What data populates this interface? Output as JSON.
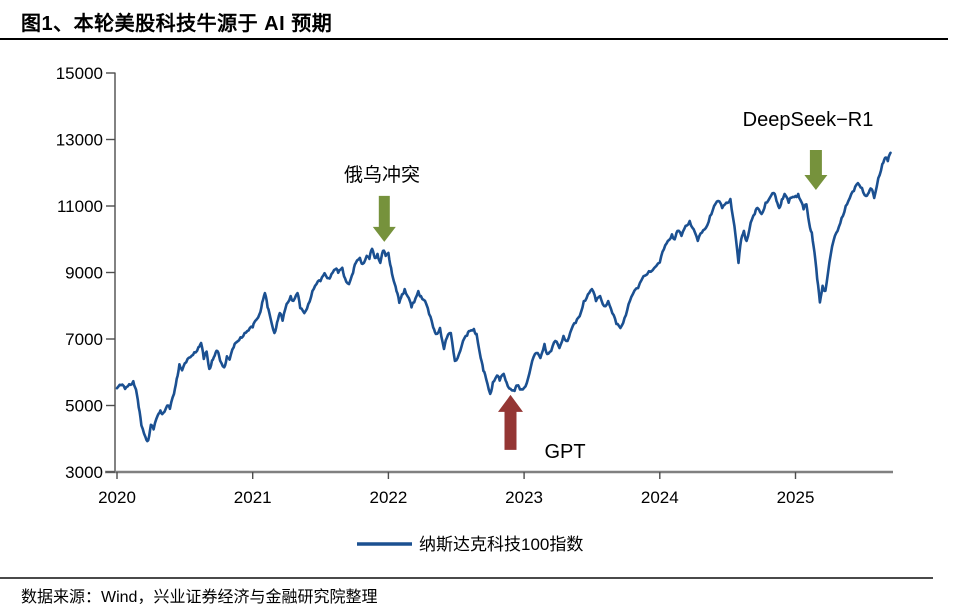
{
  "figure": {
    "title": "图1、本轮美股科技牛源于 AI 预期",
    "source": "数据来源：Wind，兴业证券经济与金融研究院整理"
  },
  "chart_data": {
    "type": "line",
    "title": "图1、本轮美股科技牛源于 AI 预期",
    "xlabel": "",
    "ylabel": "",
    "xlim": [
      2020,
      2025.73
    ],
    "ylim": [
      3000,
      15000
    ],
    "x_ticks": [
      "2020",
      "2021",
      "2022",
      "2023",
      "2024",
      "2025"
    ],
    "y_ticks": [
      15000,
      13000,
      11000,
      9000,
      7000,
      5000,
      3000
    ],
    "grid": false,
    "legend_position": "bottom-center",
    "line_color": "#1B5091",
    "axis_color": "#808080",
    "tick_color": "#4d4d4d",
    "annotations": [
      {
        "label": "俄乌冲突",
        "arrow": "down",
        "color": "#76923C",
        "x": 2021.97,
        "tip_value": 9920
      },
      {
        "label": "GPT",
        "arrow": "up",
        "color": "#943634",
        "x": 2022.9,
        "tip_value": 5320
      },
      {
        "label": "DeepSeek−R1",
        "arrow": "down",
        "color": "#76923C",
        "x": 2025.15,
        "tip_value": 11480
      }
    ],
    "series": [
      {
        "name": "纳斯达克科技100指数",
        "color": "#1B5091",
        "points": [
          [
            2020.0,
            5520
          ],
          [
            2020.03,
            5610
          ],
          [
            2020.06,
            5500
          ],
          [
            2020.09,
            5640
          ],
          [
            2020.12,
            5730
          ],
          [
            2020.14,
            5480
          ],
          [
            2020.16,
            4950
          ],
          [
            2020.18,
            4400
          ],
          [
            2020.21,
            4050
          ],
          [
            2020.23,
            3950
          ],
          [
            2020.25,
            4420
          ],
          [
            2020.27,
            4280
          ],
          [
            2020.3,
            4700
          ],
          [
            2020.32,
            4850
          ],
          [
            2020.34,
            4770
          ],
          [
            2020.37,
            5000
          ],
          [
            2020.39,
            4900
          ],
          [
            2020.42,
            5350
          ],
          [
            2020.44,
            5800
          ],
          [
            2020.46,
            6240
          ],
          [
            2020.48,
            6060
          ],
          [
            2020.51,
            6300
          ],
          [
            2020.54,
            6450
          ],
          [
            2020.57,
            6600
          ],
          [
            2020.6,
            6750
          ],
          [
            2020.62,
            6880
          ],
          [
            2020.64,
            6400
          ],
          [
            2020.66,
            6620
          ],
          [
            2020.68,
            6100
          ],
          [
            2020.7,
            6350
          ],
          [
            2020.72,
            6500
          ],
          [
            2020.74,
            6640
          ],
          [
            2020.76,
            6350
          ],
          [
            2020.79,
            6150
          ],
          [
            2020.81,
            6480
          ],
          [
            2020.83,
            6380
          ],
          [
            2020.86,
            6750
          ],
          [
            2020.88,
            6900
          ],
          [
            2020.91,
            7050
          ],
          [
            2020.94,
            7180
          ],
          [
            2020.97,
            7260
          ],
          [
            2021.0,
            7350
          ],
          [
            2021.02,
            7550
          ],
          [
            2021.05,
            7750
          ],
          [
            2021.07,
            8100
          ],
          [
            2021.09,
            8380
          ],
          [
            2021.11,
            7950
          ],
          [
            2021.13,
            7650
          ],
          [
            2021.16,
            7180
          ],
          [
            2021.18,
            7500
          ],
          [
            2021.2,
            7780
          ],
          [
            2021.22,
            7550
          ],
          [
            2021.25,
            8050
          ],
          [
            2021.28,
            8290
          ],
          [
            2021.3,
            8150
          ],
          [
            2021.33,
            8380
          ],
          [
            2021.35,
            7930
          ],
          [
            2021.38,
            7780
          ],
          [
            2021.41,
            8050
          ],
          [
            2021.44,
            8440
          ],
          [
            2021.47,
            8650
          ],
          [
            2021.5,
            8740
          ],
          [
            2021.53,
            8980
          ],
          [
            2021.56,
            8830
          ],
          [
            2021.58,
            8950
          ],
          [
            2021.61,
            9100
          ],
          [
            2021.63,
            8990
          ],
          [
            2021.66,
            9140
          ],
          [
            2021.68,
            8830
          ],
          [
            2021.71,
            8650
          ],
          [
            2021.74,
            8990
          ],
          [
            2021.76,
            9290
          ],
          [
            2021.79,
            9440
          ],
          [
            2021.81,
            9260
          ],
          [
            2021.84,
            9500
          ],
          [
            2021.86,
            9410
          ],
          [
            2021.88,
            9710
          ],
          [
            2021.9,
            9440
          ],
          [
            2021.92,
            9560
          ],
          [
            2021.94,
            9290
          ],
          [
            2021.96,
            9650
          ],
          [
            2021.98,
            9500
          ],
          [
            2022.0,
            9590
          ],
          [
            2022.02,
            9140
          ],
          [
            2022.04,
            8740
          ],
          [
            2022.06,
            8440
          ],
          [
            2022.08,
            8090
          ],
          [
            2022.1,
            8340
          ],
          [
            2022.12,
            8500
          ],
          [
            2022.15,
            8230
          ],
          [
            2022.17,
            7950
          ],
          [
            2022.19,
            8100
          ],
          [
            2022.22,
            8440
          ],
          [
            2022.24,
            8290
          ],
          [
            2022.27,
            8150
          ],
          [
            2022.3,
            7750
          ],
          [
            2022.33,
            7350
          ],
          [
            2022.35,
            7150
          ],
          [
            2022.38,
            7330
          ],
          [
            2022.41,
            6700
          ],
          [
            2022.43,
            7030
          ],
          [
            2022.46,
            7180
          ],
          [
            2022.49,
            6340
          ],
          [
            2022.52,
            6550
          ],
          [
            2022.55,
            6940
          ],
          [
            2022.58,
            7100
          ],
          [
            2022.6,
            7240
          ],
          [
            2022.63,
            7300
          ],
          [
            2022.65,
            7150
          ],
          [
            2022.68,
            6430
          ],
          [
            2022.7,
            6040
          ],
          [
            2022.72,
            5800
          ],
          [
            2022.75,
            5350
          ],
          [
            2022.77,
            5700
          ],
          [
            2022.8,
            5900
          ],
          [
            2022.82,
            5750
          ],
          [
            2022.85,
            5950
          ],
          [
            2022.87,
            5700
          ],
          [
            2022.9,
            5500
          ],
          [
            2022.93,
            5440
          ],
          [
            2022.95,
            5600
          ],
          [
            2022.97,
            5480
          ],
          [
            2023.0,
            5530
          ],
          [
            2023.03,
            5830
          ],
          [
            2023.06,
            6340
          ],
          [
            2023.09,
            6580
          ],
          [
            2023.12,
            6430
          ],
          [
            2023.15,
            6850
          ],
          [
            2023.17,
            6550
          ],
          [
            2023.2,
            6640
          ],
          [
            2023.23,
            6940
          ],
          [
            2023.26,
            6730
          ],
          [
            2023.29,
            7090
          ],
          [
            2023.32,
            6940
          ],
          [
            2023.35,
            7300
          ],
          [
            2023.38,
            7480
          ],
          [
            2023.41,
            7690
          ],
          [
            2023.44,
            8140
          ],
          [
            2023.47,
            8340
          ],
          [
            2023.5,
            8500
          ],
          [
            2023.53,
            8140
          ],
          [
            2023.56,
            8290
          ],
          [
            2023.59,
            7990
          ],
          [
            2023.62,
            8140
          ],
          [
            2023.65,
            7780
          ],
          [
            2023.68,
            7450
          ],
          [
            2023.71,
            7330
          ],
          [
            2023.74,
            7630
          ],
          [
            2023.77,
            8050
          ],
          [
            2023.8,
            8340
          ],
          [
            2023.84,
            8530
          ],
          [
            2023.88,
            8890
          ],
          [
            2023.92,
            9040
          ],
          [
            2023.96,
            9140
          ],
          [
            2024.0,
            9300
          ],
          [
            2024.03,
            9700
          ],
          [
            2024.06,
            9950
          ],
          [
            2024.09,
            10150
          ],
          [
            2024.11,
            10000
          ],
          [
            2024.13,
            10250
          ],
          [
            2024.16,
            10100
          ],
          [
            2024.19,
            10400
          ],
          [
            2024.22,
            10550
          ],
          [
            2024.25,
            10300
          ],
          [
            2024.28,
            9950
          ],
          [
            2024.31,
            10200
          ],
          [
            2024.34,
            10340
          ],
          [
            2024.37,
            10700
          ],
          [
            2024.4,
            11000
          ],
          [
            2024.43,
            11150
          ],
          [
            2024.46,
            10940
          ],
          [
            2024.49,
            11100
          ],
          [
            2024.52,
            11210
          ],
          [
            2024.55,
            10400
          ],
          [
            2024.58,
            9290
          ],
          [
            2024.6,
            10000
          ],
          [
            2024.62,
            10250
          ],
          [
            2024.64,
            9950
          ],
          [
            2024.67,
            10500
          ],
          [
            2024.7,
            10760
          ],
          [
            2024.72,
            10940
          ],
          [
            2024.75,
            10760
          ],
          [
            2024.78,
            11100
          ],
          [
            2024.81,
            11240
          ],
          [
            2024.84,
            11390
          ],
          [
            2024.86,
            11150
          ],
          [
            2024.88,
            10940
          ],
          [
            2024.9,
            11200
          ],
          [
            2024.92,
            11360
          ],
          [
            2024.95,
            11100
          ],
          [
            2024.97,
            11250
          ],
          [
            2025.0,
            11300
          ],
          [
            2025.02,
            11360
          ],
          [
            2025.04,
            11150
          ],
          [
            2025.06,
            10900
          ],
          [
            2025.08,
            11050
          ],
          [
            2025.1,
            10500
          ],
          [
            2025.12,
            10200
          ],
          [
            2025.14,
            9600
          ],
          [
            2025.16,
            8800
          ],
          [
            2025.18,
            8100
          ],
          [
            2025.2,
            8600
          ],
          [
            2025.22,
            8450
          ],
          [
            2025.25,
            9300
          ],
          [
            2025.28,
            9950
          ],
          [
            2025.31,
            10250
          ],
          [
            2025.34,
            10640
          ],
          [
            2025.37,
            11000
          ],
          [
            2025.4,
            11240
          ],
          [
            2025.43,
            11450
          ],
          [
            2025.46,
            11690
          ],
          [
            2025.49,
            11540
          ],
          [
            2025.52,
            11300
          ],
          [
            2025.54,
            11400
          ],
          [
            2025.56,
            11510
          ],
          [
            2025.58,
            11240
          ],
          [
            2025.61,
            11840
          ],
          [
            2025.64,
            12260
          ],
          [
            2025.66,
            12450
          ],
          [
            2025.68,
            12350
          ],
          [
            2025.7,
            12600
          ]
        ]
      }
    ]
  }
}
